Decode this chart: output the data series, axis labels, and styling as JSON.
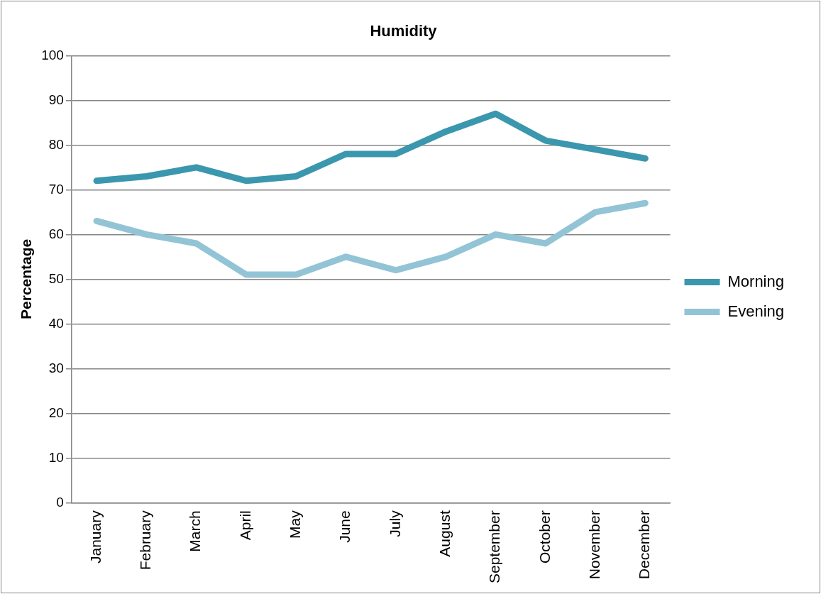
{
  "chart_data": {
    "type": "line",
    "title": "Humidity",
    "ylabel": "Percentage",
    "categories": [
      "January",
      "February",
      "March",
      "April",
      "May",
      "June",
      "July",
      "August",
      "September",
      "October",
      "November",
      "December"
    ],
    "series": [
      {
        "name": "Morning",
        "color": "#3a97ae",
        "values": [
          72,
          73,
          75,
          72,
          73,
          78,
          78,
          83,
          87,
          81,
          79,
          77
        ]
      },
      {
        "name": "Evening",
        "color": "#92c4d6",
        "values": [
          63,
          60,
          58,
          51,
          51,
          55,
          52,
          55,
          60,
          58,
          65,
          67
        ]
      }
    ],
    "ylim": [
      0,
      100
    ],
    "yticks": [
      0,
      10,
      20,
      30,
      40,
      50,
      60,
      70,
      80,
      90,
      100
    ],
    "grid": "y",
    "legend": "right",
    "marker": "none",
    "line_style": "solid"
  }
}
